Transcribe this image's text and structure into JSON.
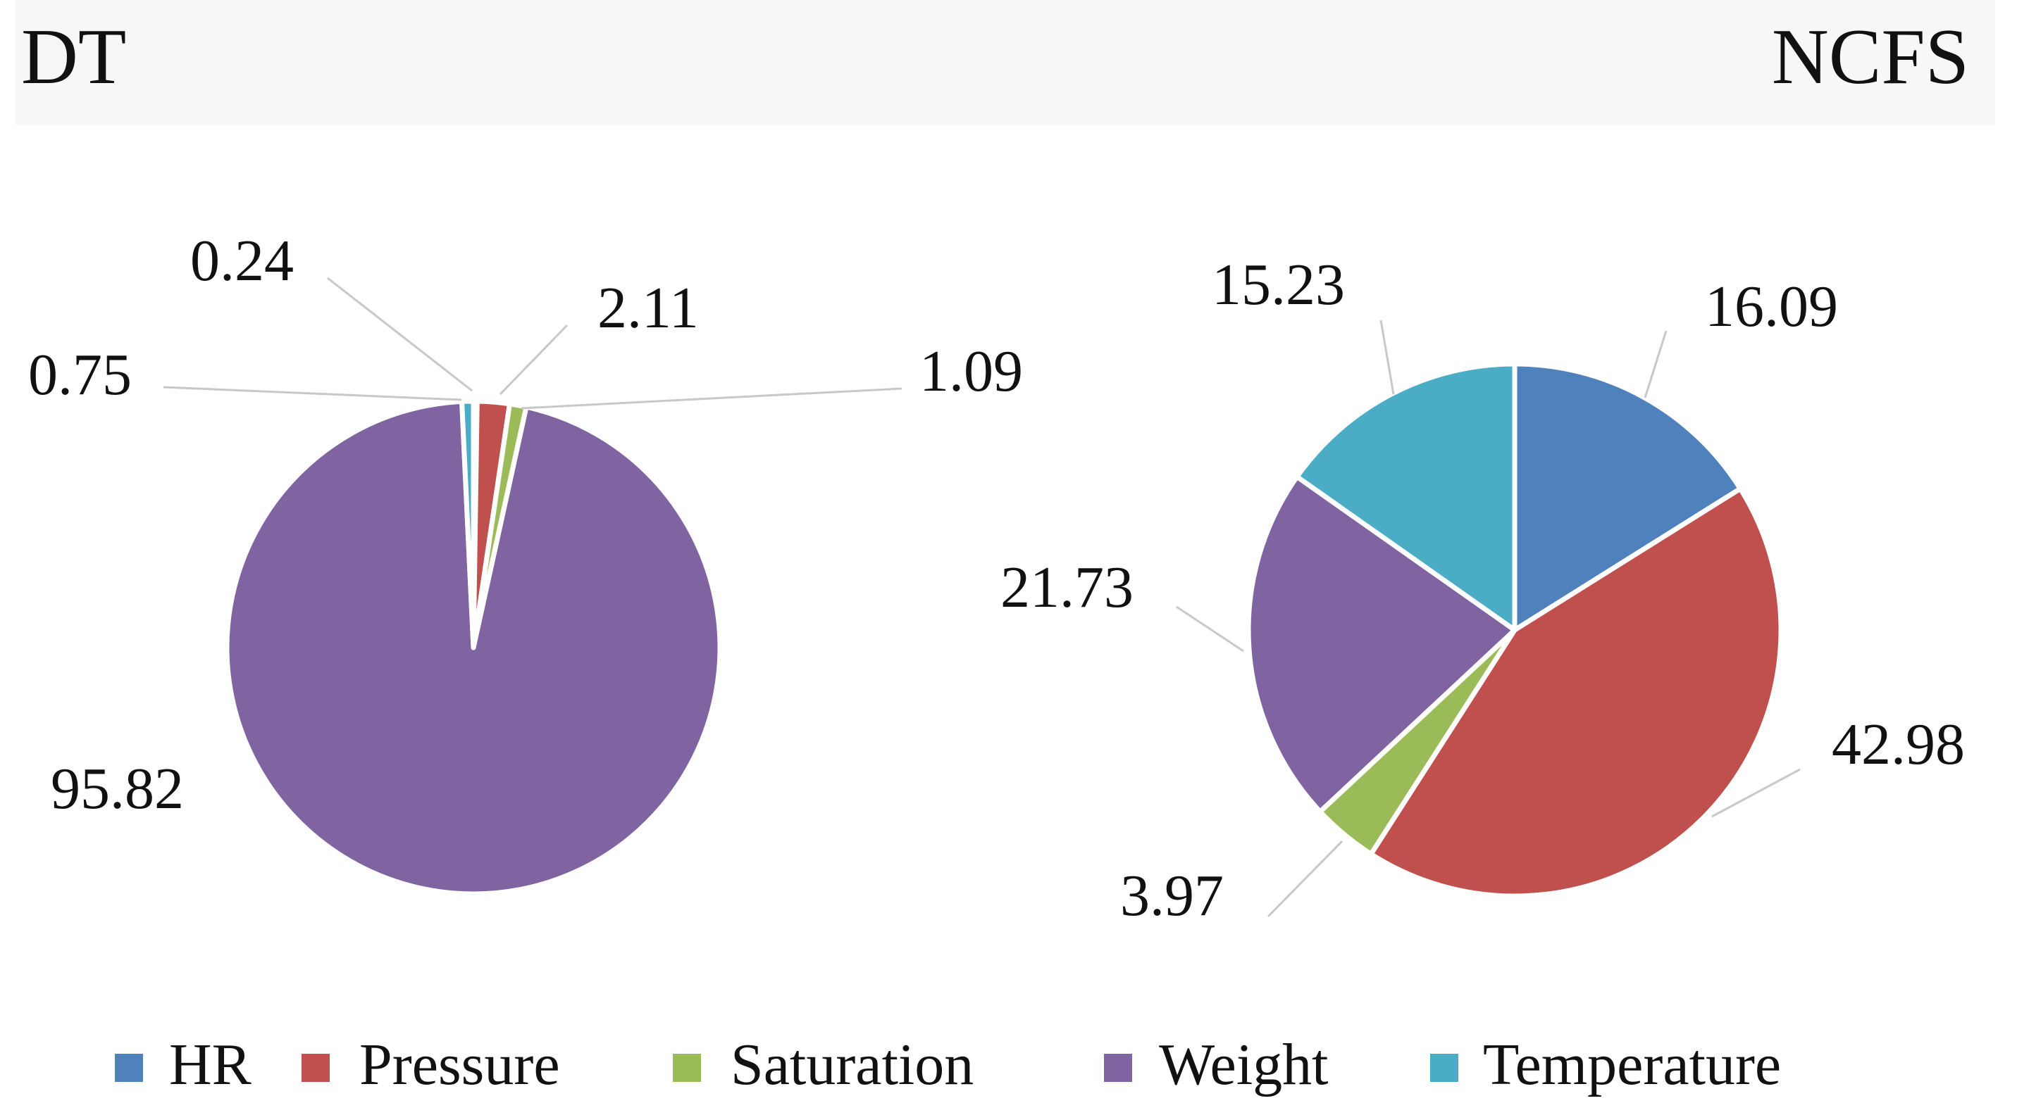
{
  "chart_data": [
    {
      "type": "pie",
      "title": "DT",
      "categories": [
        "HR",
        "Pressure",
        "Saturation",
        "Weight",
        "Temperature"
      ],
      "values": [
        0.24,
        2.11,
        1.09,
        95.82,
        0.75
      ],
      "labels": [
        "0.24",
        "2.11",
        "1.09",
        "95.82",
        "0.75"
      ],
      "legend": "bottom"
    },
    {
      "type": "pie",
      "title": "NCFS",
      "categories": [
        "HR",
        "Pressure",
        "Saturation",
        "Weight",
        "Temperature"
      ],
      "values": [
        16.09,
        42.98,
        3.97,
        21.73,
        15.23
      ],
      "labels": [
        "16.09",
        "42.98",
        "3.97",
        "21.73",
        "15.23"
      ],
      "legend": "bottom"
    }
  ],
  "legend": {
    "items": [
      {
        "label": "HR",
        "color": "#4f81bd"
      },
      {
        "label": "Pressure",
        "color": "#c0504d"
      },
      {
        "label": "Saturation",
        "color": "#9bbb59"
      },
      {
        "label": "Weight",
        "color": "#8064a2"
      },
      {
        "label": "Temperature",
        "color": "#4bacc6"
      }
    ]
  }
}
